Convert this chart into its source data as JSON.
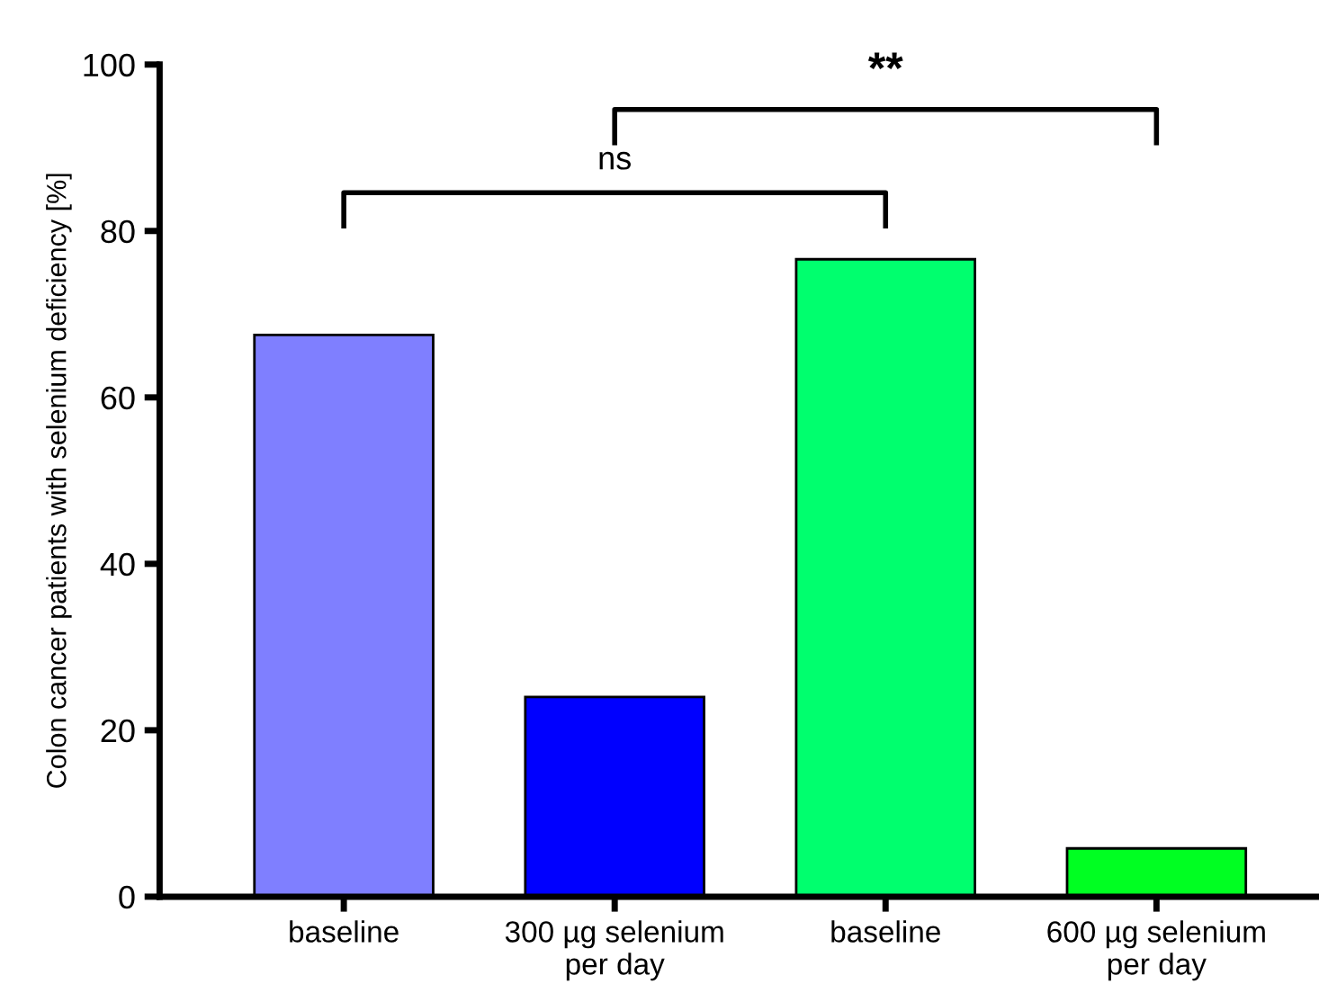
{
  "chart_data": {
    "type": "bar",
    "ylabel": "Colon cancer patients with selenium deficiency [%]",
    "categories": [
      "baseline",
      "300 µg selenium\nper day",
      "baseline",
      "600 µg selenium\nper day"
    ],
    "values": [
      67.5,
      24.0,
      76.6,
      5.8
    ],
    "colors": [
      "#7f7fff",
      "#0000ff",
      "#00ff6e",
      "#00ff22"
    ],
    "ylim": [
      0,
      100
    ],
    "yticks": [
      0,
      20,
      40,
      60,
      80,
      100
    ],
    "grid": false,
    "annotations": [
      "ns",
      "**"
    ]
  }
}
